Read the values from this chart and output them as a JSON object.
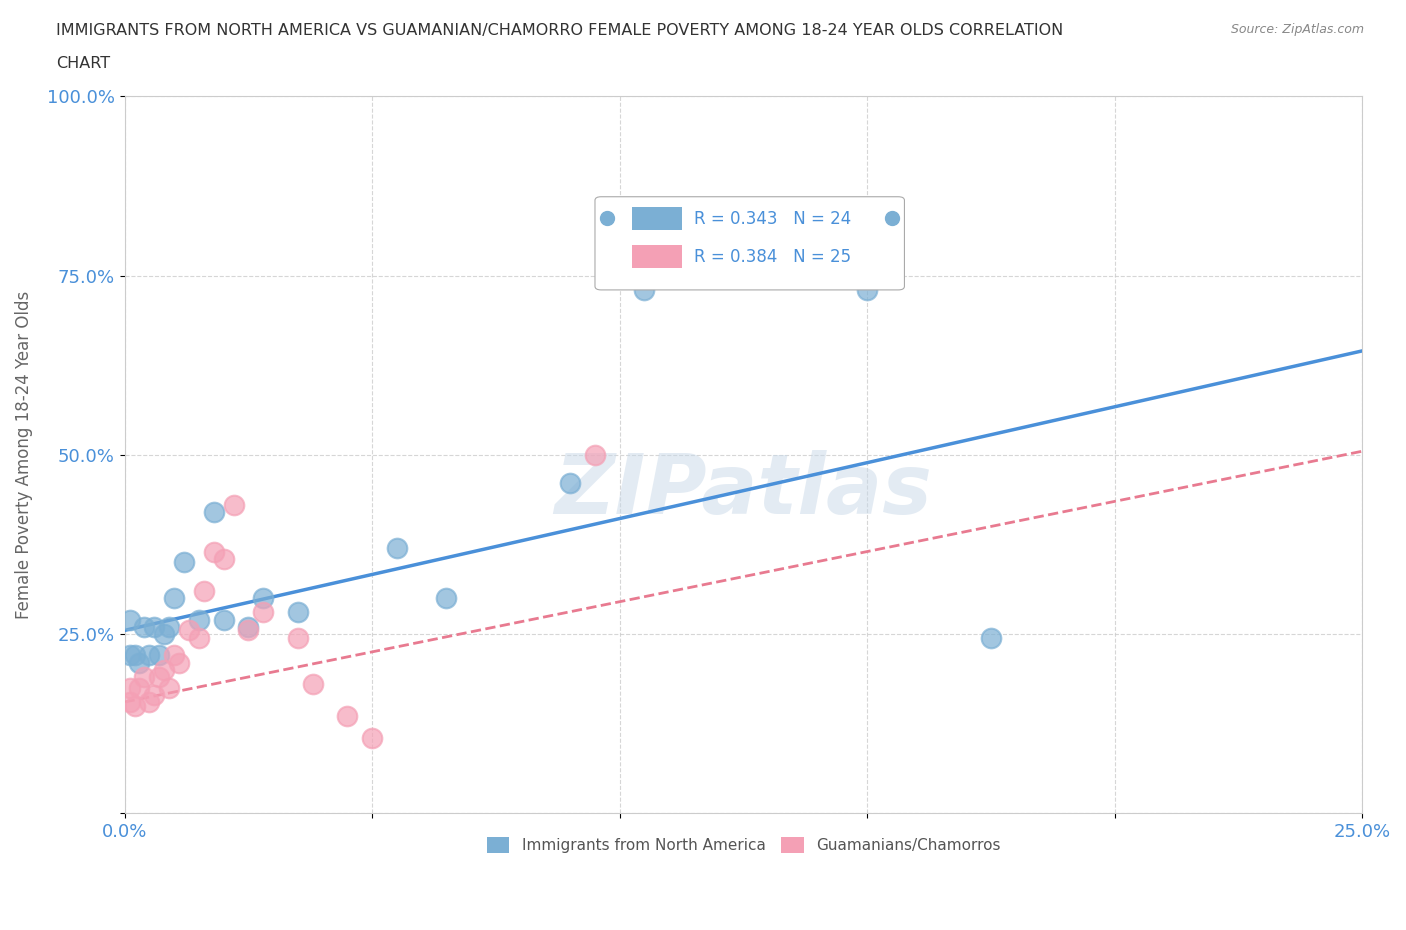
{
  "title_line1": "IMMIGRANTS FROM NORTH AMERICA VS GUAMANIAN/CHAMORRO FEMALE POVERTY AMONG 18-24 YEAR OLDS CORRELATION",
  "title_line2": "CHART",
  "source": "Source: ZipAtlas.com",
  "ylabel": "Female Poverty Among 18-24 Year Olds",
  "xlim": [
    0,
    0.25
  ],
  "ylim": [
    0,
    1.0
  ],
  "xticks": [
    0.0,
    0.05,
    0.1,
    0.15,
    0.2,
    0.25
  ],
  "yticks": [
    0.0,
    0.25,
    0.5,
    0.75,
    1.0
  ],
  "xticklabels": [
    "0.0%",
    "",
    "",
    "",
    "",
    "25.0%"
  ],
  "yticklabels": [
    "",
    "25.0%",
    "50.0%",
    "75.0%",
    "100.0%"
  ],
  "blue_color": "#7bafd4",
  "pink_color": "#f4a0b5",
  "blue_line_color": "#4a90d9",
  "pink_line_color": "#e87a90",
  "legend_R1": "R = 0.343",
  "legend_N1": "N = 24",
  "legend_R2": "R = 0.384",
  "legend_N2": "N = 25",
  "watermark": "ZIPatlas",
  "blue_line_x0": 0.0,
  "blue_line_y0": 0.255,
  "blue_line_x1": 0.25,
  "blue_line_y1": 0.645,
  "pink_line_x0": 0.0,
  "pink_line_y0": 0.155,
  "pink_line_x1": 0.25,
  "pink_line_y1": 0.505,
  "blue_scatter_x": [
    0.001,
    0.002,
    0.003,
    0.004,
    0.005,
    0.006,
    0.007,
    0.008,
    0.009,
    0.01,
    0.012,
    0.015,
    0.018,
    0.02,
    0.025,
    0.028,
    0.035,
    0.055,
    0.065,
    0.09,
    0.105,
    0.15,
    0.175,
    0.001
  ],
  "blue_scatter_y": [
    0.22,
    0.22,
    0.21,
    0.26,
    0.22,
    0.26,
    0.22,
    0.25,
    0.26,
    0.3,
    0.35,
    0.27,
    0.42,
    0.27,
    0.26,
    0.3,
    0.28,
    0.37,
    0.3,
    0.46,
    0.73,
    0.73,
    0.245,
    0.27
  ],
  "pink_scatter_x": [
    0.001,
    0.002,
    0.003,
    0.004,
    0.005,
    0.006,
    0.007,
    0.008,
    0.009,
    0.01,
    0.011,
    0.013,
    0.015,
    0.016,
    0.018,
    0.02,
    0.022,
    0.025,
    0.028,
    0.035,
    0.038,
    0.045,
    0.05,
    0.095,
    0.001
  ],
  "pink_scatter_y": [
    0.175,
    0.15,
    0.175,
    0.19,
    0.155,
    0.165,
    0.19,
    0.2,
    0.175,
    0.22,
    0.21,
    0.255,
    0.245,
    0.31,
    0.365,
    0.355,
    0.43,
    0.255,
    0.28,
    0.245,
    0.18,
    0.135,
    0.105,
    0.5,
    0.155
  ],
  "background_color": "#ffffff",
  "grid_color": "#cccccc"
}
